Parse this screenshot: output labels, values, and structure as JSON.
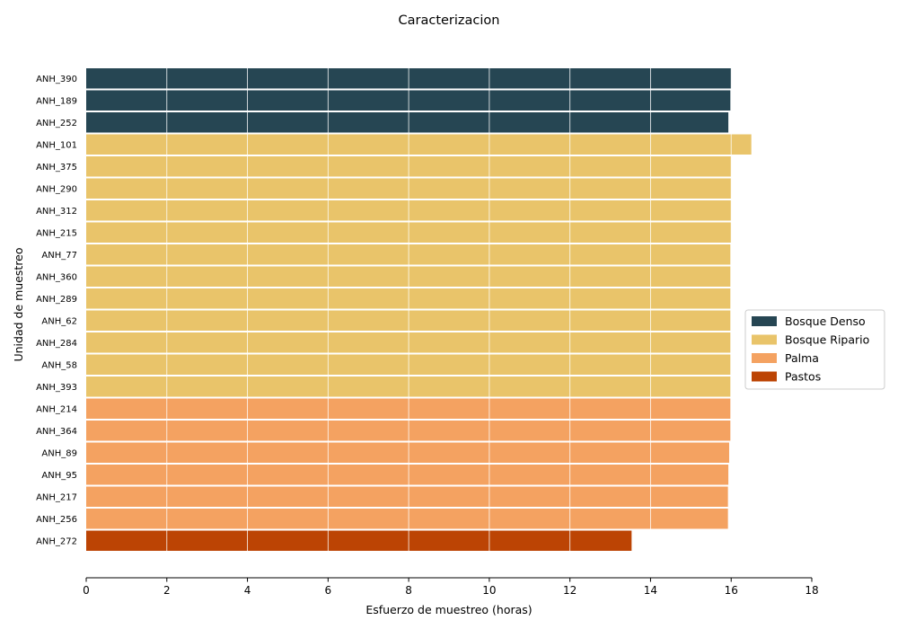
{
  "chart_data": {
    "type": "bar",
    "orientation": "horizontal",
    "title": "Caracterizacion",
    "xlabel": "Esfuerzo de muestreo (horas)",
    "ylabel": "Unidad de muestreo",
    "xlim": [
      0,
      18
    ],
    "xticks": [
      "0",
      "2",
      "4",
      "6",
      "8",
      "10",
      "12",
      "14",
      "16",
      "18"
    ],
    "grid": "vertical gridlines (white, over bars)",
    "legend_position": "right",
    "categories": [
      "ANH_390",
      "ANH_189",
      "ANH_252",
      "ANH_101",
      "ANH_375",
      "ANH_290",
      "ANH_312",
      "ANH_215",
      "ANH_77",
      "ANH_360",
      "ANH_289",
      "ANH_62",
      "ANH_284",
      "ANH_58",
      "ANH_393",
      "ANH_214",
      "ANH_364",
      "ANH_89",
      "ANH_95",
      "ANH_217",
      "ANH_256",
      "ANH_272"
    ],
    "values": [
      16.0,
      15.98,
      15.93,
      16.5,
      16.0,
      16.0,
      16.0,
      16.0,
      15.98,
      15.98,
      15.98,
      15.98,
      15.98,
      15.98,
      15.98,
      15.98,
      15.98,
      15.95,
      15.93,
      15.92,
      15.92,
      13.53
    ],
    "groups": [
      "Bosque Denso",
      "Bosque Denso",
      "Bosque Denso",
      "Bosque Ripario",
      "Bosque Ripario",
      "Bosque Ripario",
      "Bosque Ripario",
      "Bosque Ripario",
      "Bosque Ripario",
      "Bosque Ripario",
      "Bosque Ripario",
      "Bosque Ripario",
      "Bosque Ripario",
      "Bosque Ripario",
      "Bosque Ripario",
      "Palma",
      "Palma",
      "Palma",
      "Palma",
      "Palma",
      "Palma",
      "Pastos"
    ],
    "legend": [
      {
        "name": "Bosque Denso",
        "color": "#264653"
      },
      {
        "name": "Bosque Ripario",
        "color": "#e9c46a"
      },
      {
        "name": "Palma",
        "color": "#f4a261"
      },
      {
        "name": "Pastos",
        "color": "#bc4404"
      }
    ]
  }
}
